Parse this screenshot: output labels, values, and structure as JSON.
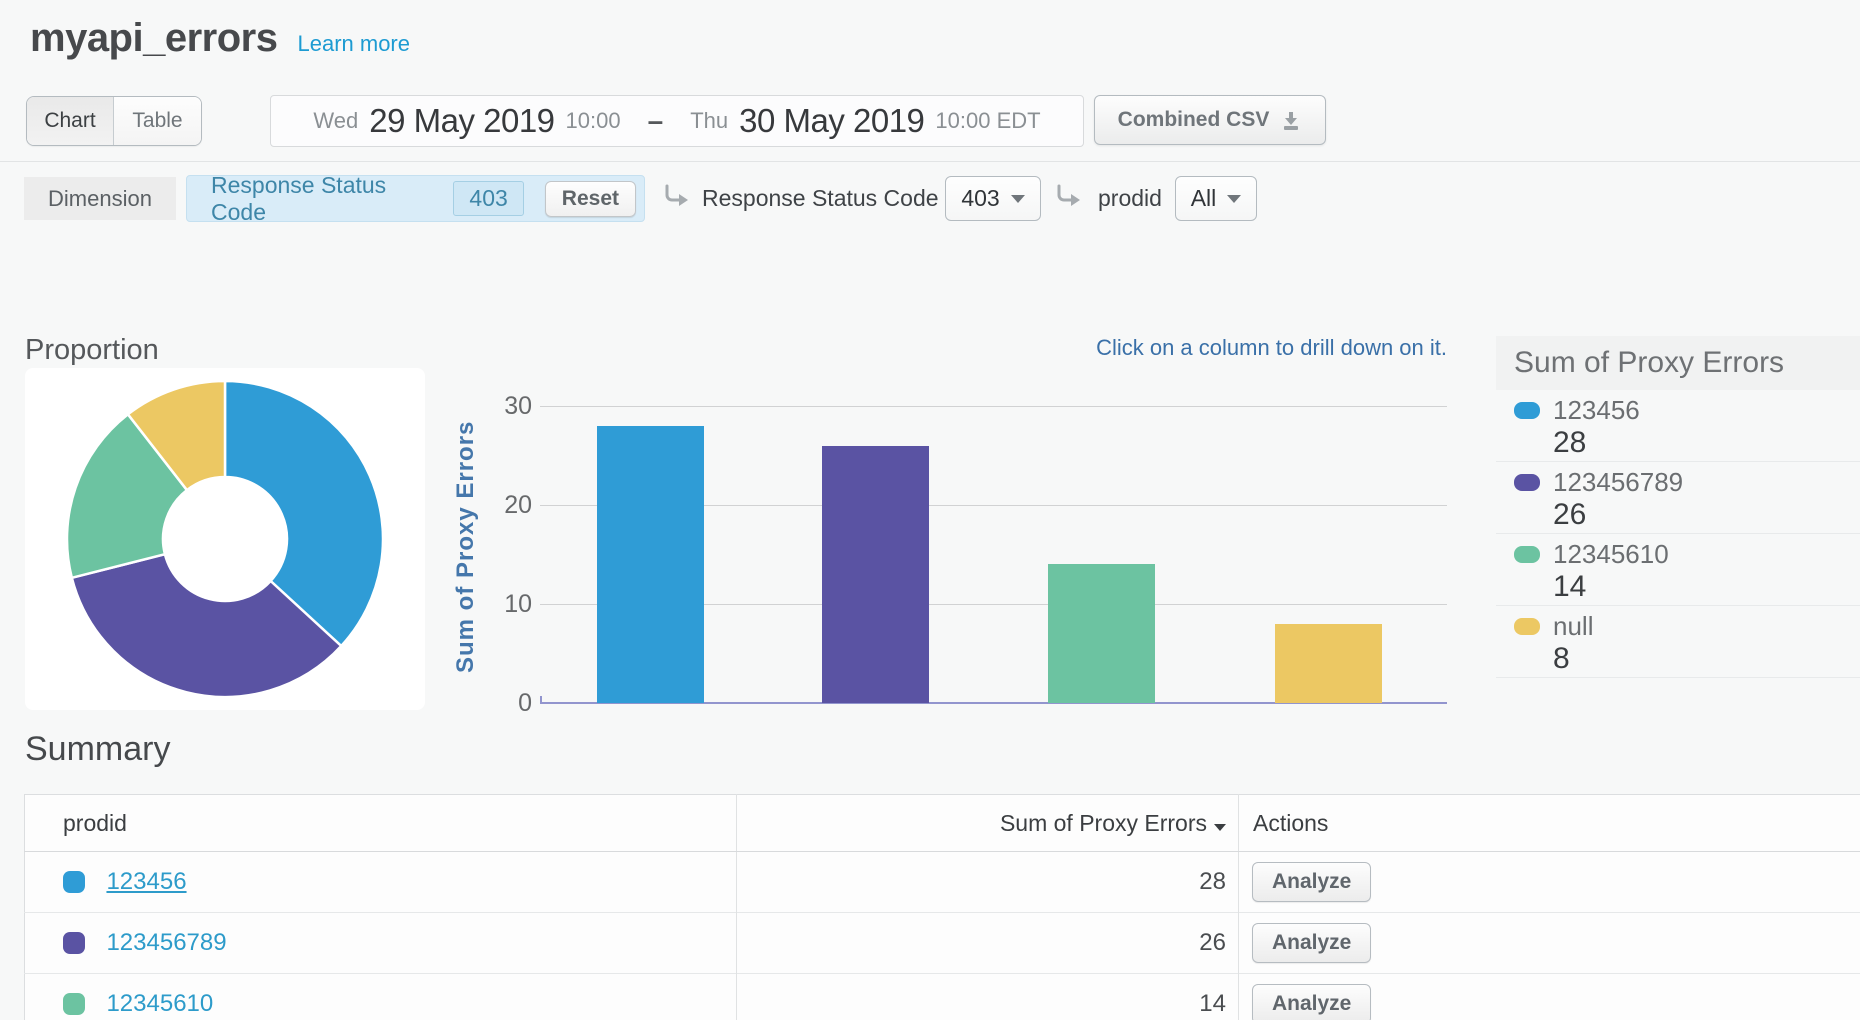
{
  "page": {
    "title": "myapi_errors",
    "learn_more_label": "Learn more"
  },
  "toolbar": {
    "view_toggle": [
      {
        "label": "Chart",
        "active": true
      },
      {
        "label": "Table",
        "active": false
      }
    ],
    "date_range": {
      "start_day": "Wed",
      "start_date": "29 May 2019",
      "start_time": "10:00",
      "separator": "–",
      "end_day": "Thu",
      "end_date": "30 May 2019",
      "end_time": "10:00 EDT"
    },
    "csv_button_label": "Combined CSV"
  },
  "filters": {
    "dimension_label": "Dimension",
    "active_filter": {
      "name": "Response Status Code",
      "value": "403",
      "reset_label": "Reset"
    },
    "drilldowns": [
      {
        "name": "Response Status Code",
        "value": "403"
      },
      {
        "name": "prodid",
        "value": "All"
      }
    ]
  },
  "proportion_title": "Proportion",
  "drilldown_hint": "Click on a column to drill down on it.",
  "chart_data": {
    "type": "bar",
    "title": "",
    "categories": [
      "123456",
      "123456789",
      "12345610",
      "null"
    ],
    "values": [
      28,
      26,
      14,
      8
    ],
    "colors": [
      "#2f9cd6",
      "#5a53a3",
      "#6cc3a1",
      "#ecc863"
    ],
    "xlabel": "",
    "ylabel": "Sum of Proxy Errors",
    "ylim": [
      0,
      30
    ],
    "yticks": [
      0,
      10,
      20,
      30
    ],
    "grid": true,
    "legend_position": "right",
    "proportion_donut": true
  },
  "legend": {
    "title": "Sum of Proxy Errors"
  },
  "summary": {
    "title": "Summary",
    "columns": [
      "prodid",
      "Sum of Proxy Errors",
      "Actions"
    ],
    "rows": [
      {
        "prodid": "123456",
        "sum": 28,
        "color": "#2f9cd6",
        "action": "Analyze"
      },
      {
        "prodid": "123456789",
        "sum": 26,
        "color": "#5a53a3",
        "action": "Analyze"
      },
      {
        "prodid": "12345610",
        "sum": 14,
        "color": "#6cc3a1",
        "action": "Analyze"
      }
    ]
  },
  "colors": {
    "link_blue": "#1d9bd2",
    "axis_label_blue": "#4577ab",
    "hint_blue": "#3a70a8",
    "baseline_purple": "#9295ce"
  }
}
